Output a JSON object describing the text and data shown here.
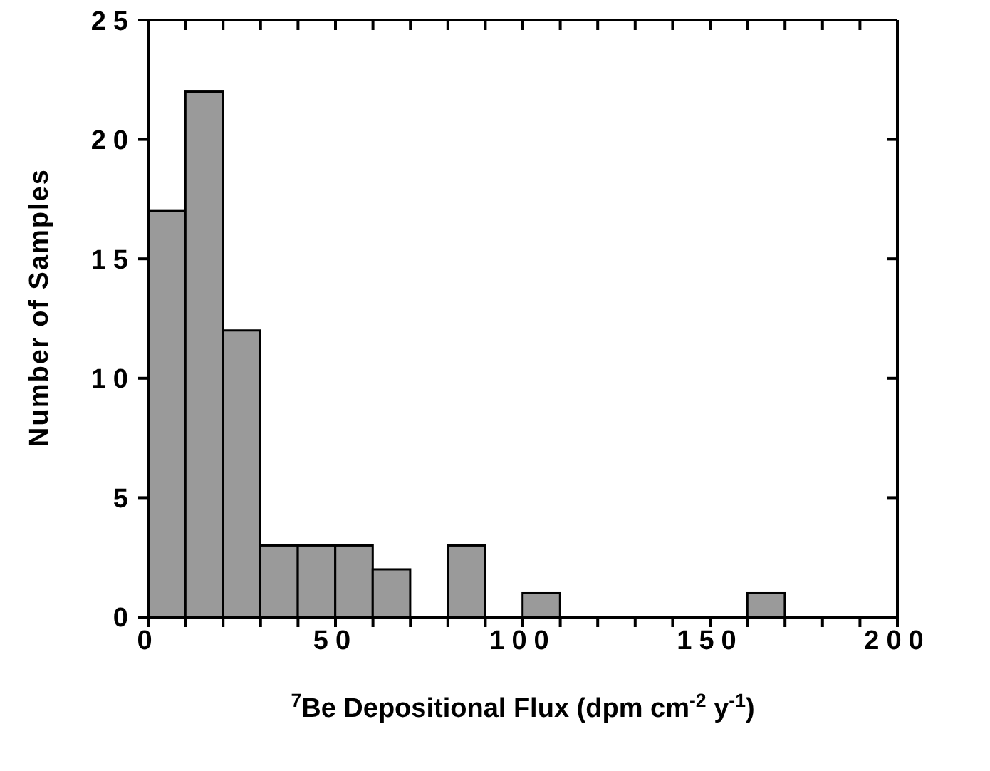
{
  "chart_data": {
    "type": "histogram",
    "xlabel": "$^{7}$Be Depositional Flux (dpm cm$^{-2}$ y$^{-1}$)",
    "ylabel": "Number of Samples",
    "bins": [
      0,
      10,
      20,
      30,
      40,
      50,
      60,
      70,
      80,
      90,
      100,
      110,
      120,
      130,
      140,
      150,
      160,
      170,
      180,
      190,
      200
    ],
    "values": [
      17,
      22,
      12,
      3,
      3,
      3,
      2,
      0,
      3,
      0,
      1,
      0,
      0,
      0,
      0,
      0,
      1,
      0,
      0,
      0
    ],
    "color": "#9a9a9a",
    "xlim": [
      0,
      200
    ],
    "xticks": [
      0,
      {
        "value": 10,
        "label": null
      },
      {
        "value": 20,
        "label": null
      },
      {
        "value": 30,
        "label": null
      },
      {
        "value": 40,
        "label": null
      },
      50,
      {
        "value": 60,
        "label": null
      },
      {
        "value": 70,
        "label": null
      },
      {
        "value": 80,
        "label": null
      },
      {
        "value": 90,
        "label": null
      },
      100,
      {
        "value": 110,
        "label": null
      },
      {
        "value": 120,
        "label": null
      },
      {
        "value": 130,
        "label": null
      },
      {
        "value": 140,
        "label": null
      },
      150,
      {
        "value": 160,
        "label": null
      },
      {
        "value": 170,
        "label": null
      },
      {
        "value": 180,
        "label": null
      },
      {
        "value": 190,
        "label": null
      },
      200
    ],
    "ylim": [
      0,
      25
    ],
    "yticks": [
      0,
      5,
      10,
      15,
      20,
      25
    ]
  }
}
